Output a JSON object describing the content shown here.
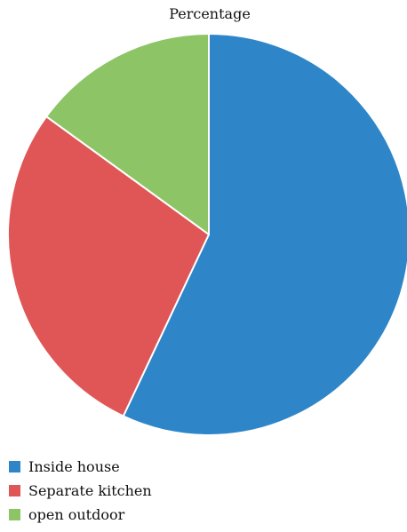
{
  "chart_data": {
    "type": "pie",
    "title": "Percentage",
    "categories": [
      "Inside house",
      "Separate kitchen",
      "open outdoor"
    ],
    "values": [
      57,
      28,
      15
    ],
    "colors": [
      "#2E86C8",
      "#E05656",
      "#8CC466"
    ],
    "start_angle_deg": 0,
    "direction": "clockwise",
    "legend_position": "bottom-left"
  }
}
